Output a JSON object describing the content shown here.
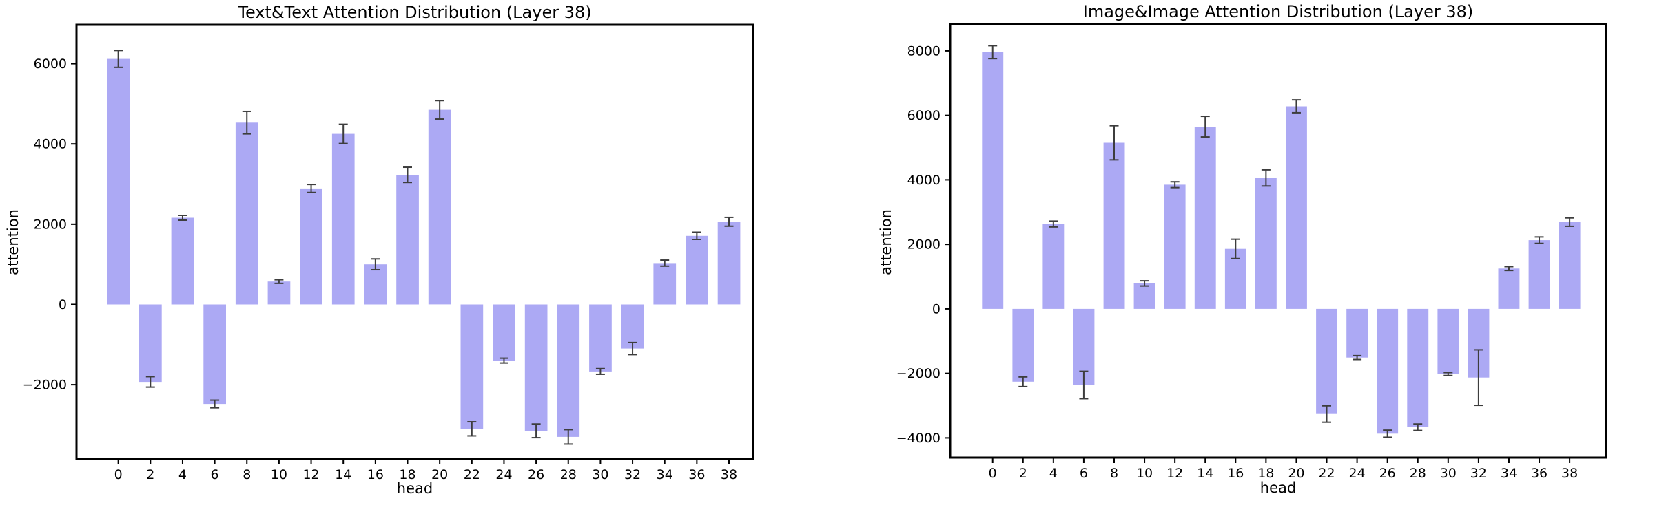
{
  "page": {
    "background": "#ffffff"
  },
  "chart_data": [
    {
      "type": "bar",
      "title": "Text&Text Attention Distribution (Layer 38)",
      "xlabel": "head",
      "ylabel": "attention",
      "categories": [
        0,
        2,
        4,
        6,
        8,
        10,
        12,
        14,
        16,
        18,
        20,
        22,
        24,
        26,
        28,
        30,
        32,
        34,
        36,
        38
      ],
      "values": [
        6120,
        -1930,
        2160,
        -2480,
        4530,
        570,
        2890,
        4250,
        1000,
        3230,
        4850,
        -3100,
        -1400,
        -3150,
        -3300,
        -1670,
        -1100,
        1030,
        1710,
        2060
      ],
      "errors": [
        210,
        130,
        60,
        95,
        280,
        45,
        100,
        240,
        135,
        190,
        230,
        175,
        60,
        170,
        180,
        70,
        150,
        75,
        90,
        110
      ],
      "yticks": [
        -2000,
        0,
        2000,
        4000,
        6000
      ],
      "ytick_labels": [
        "−2000",
        "0",
        "2000",
        "4000",
        "6000"
      ],
      "xlim": [
        -2.6,
        39.5
      ],
      "ylim": [
        -3850,
        6970
      ],
      "bar_color": "#aca9f4",
      "error_color": "#3d3d3d",
      "grid": false,
      "legend": "none"
    },
    {
      "type": "bar",
      "title": "Image&Image Attention Distribution (Layer 38)",
      "xlabel": "head",
      "ylabel": "attention",
      "categories": [
        0,
        2,
        4,
        6,
        8,
        10,
        12,
        14,
        16,
        18,
        20,
        22,
        24,
        26,
        28,
        30,
        32,
        34,
        36,
        38
      ],
      "values": [
        7960,
        -2260,
        2630,
        -2360,
        5150,
        790,
        3850,
        5650,
        1860,
        4060,
        6280,
        -3260,
        -1510,
        -3870,
        -3670,
        -2020,
        -2130,
        1250,
        2130,
        2690
      ],
      "errors": [
        200,
        150,
        90,
        425,
        530,
        80,
        90,
        320,
        300,
        250,
        200,
        255,
        60,
        110,
        100,
        45,
        860,
        60,
        100,
        130
      ],
      "yticks": [
        -4000,
        -2000,
        0,
        2000,
        4000,
        6000,
        8000
      ],
      "ytick_labels": [
        "−4000",
        "−2000",
        "0",
        "2000",
        "4000",
        "6000",
        "8000"
      ],
      "xlim": [
        -2.8,
        40.4
      ],
      "ylim": [
        -4610,
        8830
      ],
      "bar_color": "#aca9f4",
      "error_color": "#3d3d3d",
      "grid": false,
      "legend": "none"
    }
  ]
}
